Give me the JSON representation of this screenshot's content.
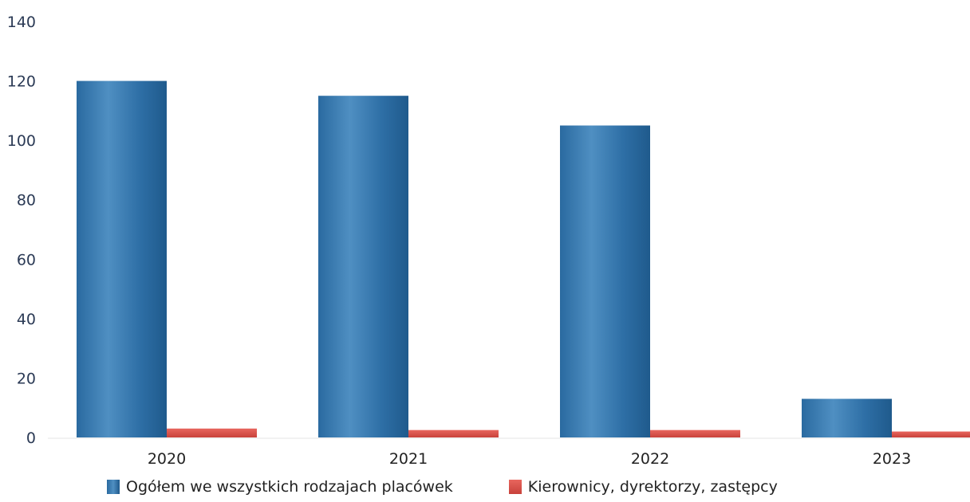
{
  "chart_data": {
    "type": "bar",
    "categories": [
      "2020",
      "2021",
      "2022",
      "2023"
    ],
    "series": [
      {
        "name": "Ogółem we wszystkich rodzajach placówek",
        "values": [
          120,
          115,
          105,
          13
        ],
        "color": "#2e6fa6"
      },
      {
        "name": "Kierownicy, dyrektorzy, zastępcy",
        "values": [
          3,
          2.5,
          2.5,
          2
        ],
        "color": "#e0524a"
      }
    ],
    "yticks": [
      "0",
      "20",
      "40",
      "60",
      "80",
      "100",
      "120",
      "140"
    ],
    "ylim": [
      0,
      140
    ],
    "legend_position": "bottom",
    "grid": false
  }
}
